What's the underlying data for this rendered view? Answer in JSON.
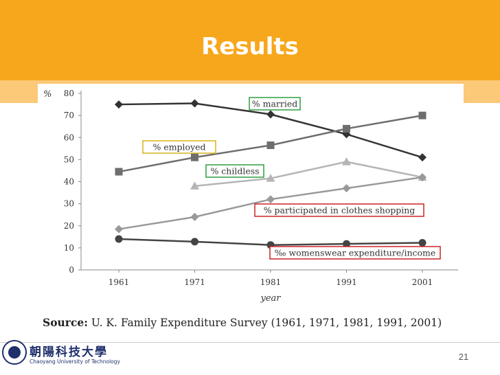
{
  "slide": {
    "title": "Results",
    "source_label": "Source:",
    "source_text": " U. K. Family Expenditure Survey (1961, 1971, 1981, 1991, 2001)",
    "page_number": "21",
    "logo_cn": "朝陽科技大學",
    "logo_en": "Chaoyang University of Technology",
    "accent_color": "#f7a71c"
  },
  "chart_data": {
    "type": "line",
    "ylabel": "%",
    "xlabel": "year",
    "categories": [
      "1961",
      "1971",
      "1981",
      "1991",
      "2001"
    ],
    "ylim": [
      0,
      80
    ],
    "yticks": [
      0,
      10,
      20,
      30,
      40,
      50,
      60,
      70,
      80
    ],
    "grid": false,
    "series": [
      {
        "name": "% married",
        "values": [
          75,
          75.5,
          70.5,
          61.5,
          51
        ],
        "color": "#333333",
        "marker": "diamond",
        "label_box_color": "#2e9e3e"
      },
      {
        "name": "% employed",
        "values": [
          44.5,
          51,
          56.5,
          64,
          70
        ],
        "color": "#6e6e6e",
        "marker": "square",
        "label_box_color": "#d6b21c"
      },
      {
        "name": "% childless",
        "values": [
          null,
          38,
          41.5,
          49,
          42
        ],
        "color": "#b5b5b5",
        "marker": "triangle",
        "label_box_color": "#2e9e3e"
      },
      {
        "name": "% participated in clothes shopping",
        "values": [
          18.5,
          24,
          32,
          37,
          42
        ],
        "color": "#999999",
        "marker": "diamond",
        "label_box_color": "#cc2222"
      },
      {
        "name": "‰ womenswear expenditure/income",
        "values": [
          14,
          12.8,
          11.3,
          11.8,
          12.3
        ],
        "color": "#444444",
        "marker": "circle",
        "label_box_color": "#cc2222"
      }
    ]
  }
}
